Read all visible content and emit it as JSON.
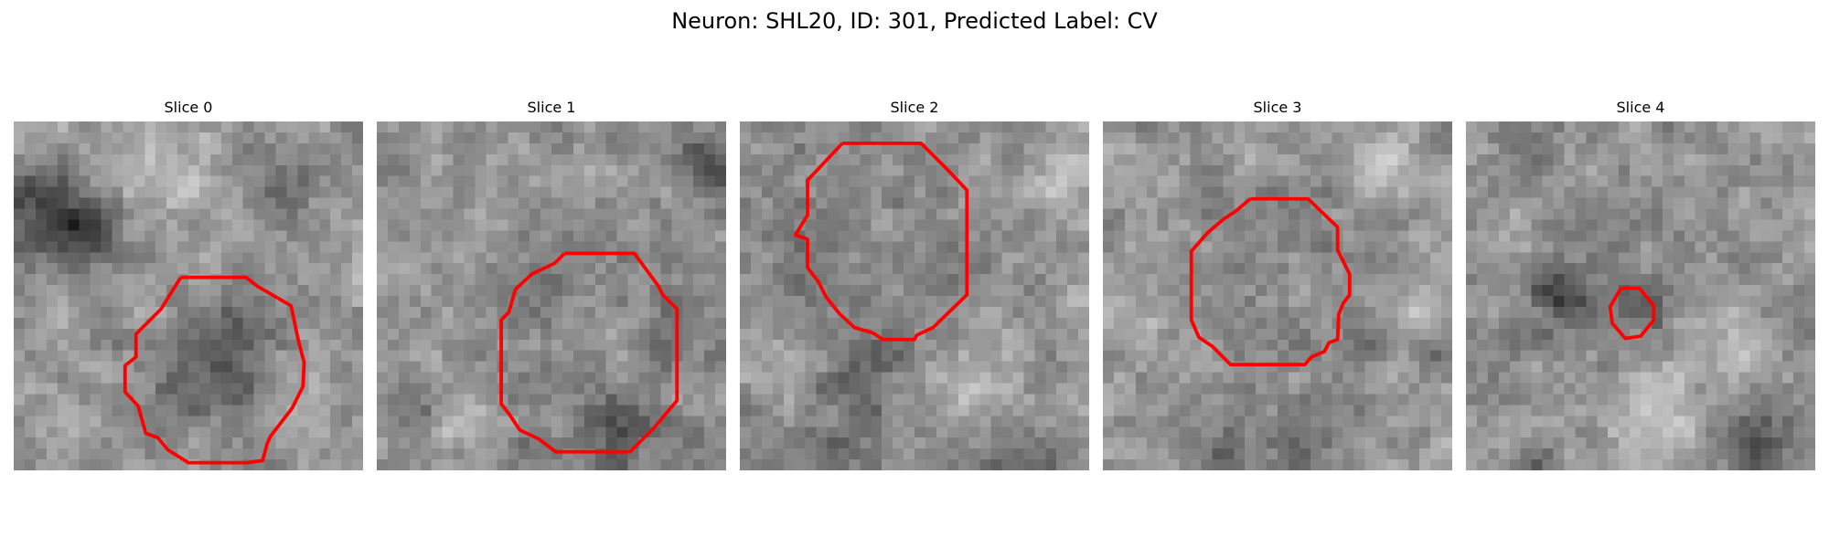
{
  "figure": {
    "title": "Neuron: SHL20, ID: 301, Predicted Label: CV",
    "colormap": "gray",
    "contour_color": "#ff0000"
  },
  "panels": [
    {
      "title": "Slice 0"
    },
    {
      "title": "Slice 1"
    },
    {
      "title": "Slice 2"
    },
    {
      "title": "Slice 3"
    },
    {
      "title": "Slice 4"
    }
  ]
}
